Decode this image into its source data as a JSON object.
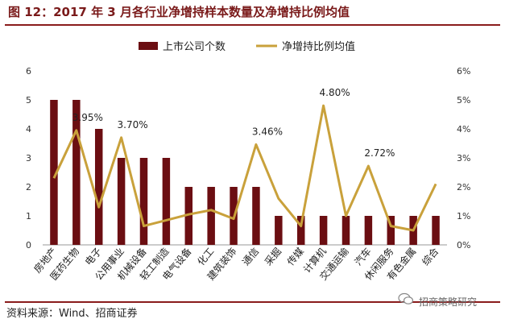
{
  "header": {
    "title": "图 12：2017 年 3 月各行业净增持样本数量及净增持比例均值"
  },
  "footer": {
    "source": "资料来源：Wind、招商证券",
    "watermark": "招商策略研究",
    "watermark_icon": "wechat-icon"
  },
  "colors": {
    "bar": "#6b0e12",
    "line": "#c9a13b",
    "title": "#7a1a1a",
    "rule": "#8a1c1c"
  },
  "chart_data": {
    "type": "bar",
    "categories": [
      "房地产",
      "医药生物",
      "电子",
      "公用事业",
      "机械设备",
      "轻工制造",
      "电气设备",
      "化工",
      "建筑装饰",
      "通信",
      "采掘",
      "传媒",
      "计算机",
      "交通运输",
      "汽车",
      "休闲服务",
      "有色金属",
      "综合"
    ],
    "series": [
      {
        "name": "上市公司个数",
        "kind": "bar",
        "axis": "left",
        "values": [
          5,
          5,
          4,
          3,
          3,
          3,
          2,
          2,
          2,
          2,
          1,
          1,
          1,
          1,
          1,
          1,
          1,
          1
        ]
      },
      {
        "name": "净增持比例均值",
        "kind": "line",
        "axis": "right",
        "values": [
          2.3,
          3.95,
          1.3,
          3.7,
          0.65,
          0.85,
          1.05,
          1.2,
          0.9,
          3.46,
          1.6,
          0.65,
          4.8,
          1.0,
          2.72,
          0.65,
          0.5,
          2.1
        ]
      }
    ],
    "y_left": {
      "min": 0,
      "max": 6,
      "ticks": [
        "0",
        "1",
        "2",
        "3",
        "4",
        "5",
        "6"
      ]
    },
    "y_right": {
      "min": 0,
      "max": 6,
      "ticks": [
        "0%",
        "1%",
        "2%",
        "3%",
        "4%",
        "5%",
        "6%"
      ]
    },
    "annotations": [
      {
        "category": "医药生物",
        "text": "3.95%"
      },
      {
        "category": "公用事业",
        "text": "3.70%"
      },
      {
        "category": "通信",
        "text": "3.46%"
      },
      {
        "category": "计算机",
        "text": "4.80%"
      },
      {
        "category": "汽车",
        "text": "2.72%"
      }
    ],
    "legend_position": "top",
    "grid": false
  }
}
